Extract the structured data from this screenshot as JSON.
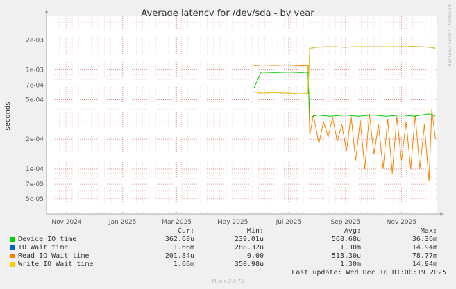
{
  "chart_data": {
    "type": "line",
    "title": "Average latency for /dev/sda - by year",
    "ylabel": "seconds",
    "y_scale": "log",
    "ylim": [
      3.5e-05,
      0.0035
    ],
    "y_ticks": [
      {
        "value": 0.002,
        "label": "2e-03"
      },
      {
        "value": 0.001,
        "label": "1e-03"
      },
      {
        "value": 0.0007,
        "label": "7e-04"
      },
      {
        "value": 0.0005,
        "label": "5e-04"
      },
      {
        "value": 0.0002,
        "label": "2e-04"
      },
      {
        "value": 0.0001,
        "label": "1e-04"
      },
      {
        "value": 7e-05,
        "label": "7e-05"
      },
      {
        "value": 5e-05,
        "label": "5e-05"
      }
    ],
    "x_range": [
      "2024-10-10",
      "2025-12-10"
    ],
    "x_ticks": [
      {
        "date": "2024-11-01",
        "label": "Nov 2024"
      },
      {
        "date": "2025-01-01",
        "label": "Jan 2025"
      },
      {
        "date": "2025-03-01",
        "label": "Mar 2025"
      },
      {
        "date": "2025-05-01",
        "label": "May 2025"
      },
      {
        "date": "2025-07-01",
        "label": "Jul 2025"
      },
      {
        "date": "2025-09-01",
        "label": "Sep 2025"
      },
      {
        "date": "2025-11-01",
        "label": "Nov 2025"
      }
    ],
    "grid": true,
    "series": [
      {
        "name": "Device IO time",
        "color": "#00cc00",
        "x": [
          "2025-05-24",
          "2025-06-01",
          "2025-06-15",
          "2025-07-01",
          "2025-07-15",
          "2025-07-22",
          "2025-07-24",
          "2025-08-01",
          "2025-08-15",
          "2025-09-01",
          "2025-09-15",
          "2025-10-01",
          "2025-10-15",
          "2025-11-01",
          "2025-11-15",
          "2025-12-01",
          "2025-12-08"
        ],
        "y": [
          0.00065,
          0.00095,
          0.00094,
          0.00095,
          0.00094,
          0.00095,
          0.00033,
          0.00035,
          0.00034,
          0.00035,
          0.00034,
          0.00035,
          0.00034,
          0.00035,
          0.00034,
          0.00036,
          0.00034
        ]
      },
      {
        "name": "IO Wait time",
        "color": "#0066b3",
        "x": [
          "2025-05-24",
          "2025-06-01",
          "2025-06-15",
          "2025-07-01",
          "2025-07-15",
          "2025-07-22",
          "2025-07-24",
          "2025-08-01",
          "2025-08-15",
          "2025-09-01",
          "2025-09-15",
          "2025-10-01",
          "2025-10-15",
          "2025-11-01",
          "2025-11-15",
          "2025-12-01",
          "2025-12-08"
        ],
        "y": [
          0.0006,
          0.00058,
          0.00059,
          0.00058,
          0.00057,
          0.00058,
          0.00165,
          0.0017,
          0.00172,
          0.0017,
          0.00172,
          0.00171,
          0.00172,
          0.00171,
          0.00173,
          0.0017,
          0.00166
        ]
      },
      {
        "name": "Read IO Wait time",
        "color": "#ff8000",
        "x": [
          "2025-05-24",
          "2025-06-01",
          "2025-06-15",
          "2025-07-01",
          "2025-07-15",
          "2025-07-22",
          "2025-07-24",
          "2025-07-28",
          "2025-08-03",
          "2025-08-08",
          "2025-08-13",
          "2025-08-18",
          "2025-08-23",
          "2025-08-28",
          "2025-09-02",
          "2025-09-07",
          "2025-09-12",
          "2025-09-17",
          "2025-09-22",
          "2025-09-27",
          "2025-10-02",
          "2025-10-07",
          "2025-10-12",
          "2025-10-17",
          "2025-10-22",
          "2025-10-27",
          "2025-11-01",
          "2025-11-06",
          "2025-11-11",
          "2025-11-16",
          "2025-11-21",
          "2025-11-26",
          "2025-12-01",
          "2025-12-04",
          "2025-12-08"
        ],
        "y": [
          0.0011,
          0.00112,
          0.00111,
          0.00112,
          0.0011,
          0.00111,
          0.00022,
          0.00035,
          0.00018,
          0.0003,
          0.00021,
          0.00033,
          0.00019,
          0.00028,
          0.00015,
          0.00035,
          0.00012,
          0.00031,
          0.0001,
          0.00036,
          0.00014,
          0.00028,
          0.0001,
          0.00032,
          9e-05,
          0.00034,
          0.00012,
          0.0003,
          0.0001,
          0.00035,
          0.0001,
          0.00028,
          7.5e-05,
          0.0004,
          0.0002
        ]
      },
      {
        "name": "Write IO Wait time",
        "color": "#ffcc00",
        "x": [
          "2025-05-24",
          "2025-06-01",
          "2025-06-15",
          "2025-07-01",
          "2025-07-15",
          "2025-07-22",
          "2025-07-24",
          "2025-08-01",
          "2025-08-15",
          "2025-09-01",
          "2025-09-15",
          "2025-10-01",
          "2025-10-15",
          "2025-11-01",
          "2025-11-15",
          "2025-12-01",
          "2025-12-08"
        ],
        "y": [
          0.0006,
          0.00058,
          0.00059,
          0.00058,
          0.00057,
          0.00058,
          0.00165,
          0.0017,
          0.00172,
          0.0017,
          0.00172,
          0.00171,
          0.00172,
          0.00171,
          0.00173,
          0.0017,
          0.00166
        ]
      }
    ]
  },
  "legend": {
    "headers": {
      "cur": "Cur:",
      "min": "Min:",
      "avg": "Avg:",
      "max": "Max:"
    },
    "rows": [
      {
        "name": "Device IO time",
        "color": "#00cc00",
        "cur": "362.68u",
        "min": "239.01u",
        "avg": "568.68u",
        "max": "36.36m"
      },
      {
        "name": "IO Wait time",
        "color": "#0066b3",
        "cur": "1.66m",
        "min": "288.32u",
        "avg": "1.30m",
        "max": "14.94m"
      },
      {
        "name": "Read IO Wait time",
        "color": "#ff8000",
        "cur": "201.84u",
        "min": "0.00",
        "avg": "513.30u",
        "max": "78.77m"
      },
      {
        "name": "Write IO Wait time",
        "color": "#ffcc00",
        "cur": "1.66m",
        "min": "350.98u",
        "avg": "1.30m",
        "max": "14.94m"
      }
    ]
  },
  "last_update": "Last update: Wed Dec 10 01:00:19 2025",
  "watermark": "RRDTOOL / TOBI OETIKER",
  "footer": "Munin 2.0.73"
}
